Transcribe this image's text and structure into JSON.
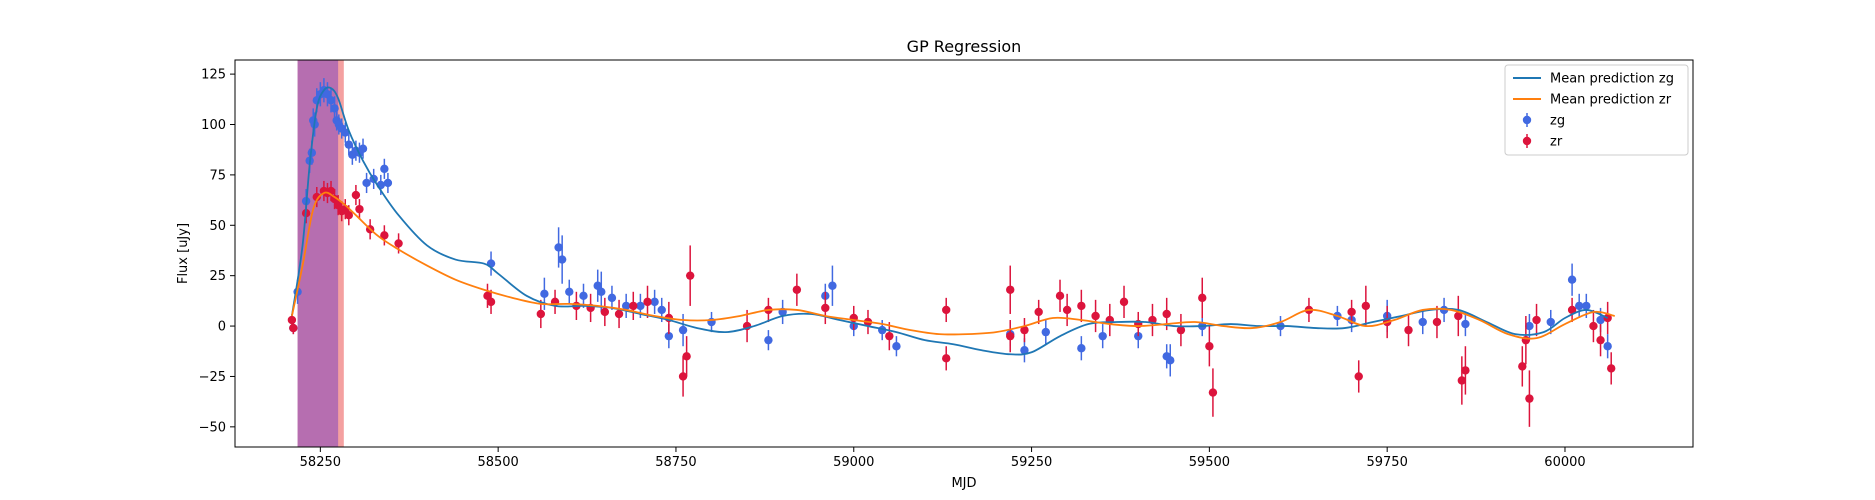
{
  "chart_data": {
    "type": "scatter",
    "title": "GP Regression",
    "xlabel": "MJD",
    "ylabel": "Flux [uJy]",
    "xlim": [
      58130,
      60180
    ],
    "ylim": [
      -60,
      132
    ],
    "xticks": [
      58250,
      58500,
      58750,
      59000,
      59250,
      59500,
      59750,
      60000
    ],
    "yticks": [
      -50,
      -25,
      0,
      25,
      50,
      75,
      100,
      125
    ],
    "grid": false,
    "legend_position": "top-right",
    "legend": [
      "Mean prediction zg",
      "Mean prediction zr",
      "zg",
      "zr"
    ],
    "shaded_regions": [
      {
        "x0": 58218,
        "x1": 58283,
        "color": "#f08080",
        "opacity": 0.75
      },
      {
        "x0": 58218,
        "x1": 58275,
        "color": "#9b59b6",
        "opacity": 0.7
      }
    ],
    "series": [
      {
        "name": "Mean prediction zg",
        "kind": "line",
        "color": "#1f77b4",
        "x": [
          58210,
          58225,
          58235,
          58245,
          58255,
          58265,
          58275,
          58290,
          58310,
          58330,
          58360,
          58400,
          58440,
          58480,
          58500,
          58540,
          58580,
          58620,
          58660,
          58700,
          58740,
          58780,
          58820,
          58860,
          58900,
          58940,
          58980,
          59020,
          59060,
          59100,
          59140,
          59180,
          59220,
          59250,
          59290,
          59330,
          59370,
          59410,
          59450,
          59490,
          59530,
          59570,
          59610,
          59650,
          59690,
          59730,
          59770,
          59810,
          59850,
          59890,
          59930,
          59970,
          60000,
          60030,
          60060
        ],
        "y": [
          5,
          40,
          80,
          108,
          117,
          118,
          113,
          97,
          82,
          70,
          55,
          40,
          33,
          31,
          26,
          15,
          10,
          10,
          9,
          6,
          3,
          -1,
          -3,
          0,
          5,
          6,
          3,
          0,
          -3,
          -7,
          -9,
          -12,
          -14,
          -13,
          -5,
          1,
          2,
          2,
          0,
          0,
          1,
          0,
          0,
          -1,
          -1,
          2,
          5,
          8,
          8,
          2,
          -4,
          -3,
          4,
          8,
          4
        ]
      },
      {
        "name": "Mean prediction zr",
        "kind": "line",
        "color": "#ff7f0e",
        "x": [
          58210,
          58225,
          58240,
          58255,
          58270,
          58285,
          58300,
          58330,
          58360,
          58400,
          58440,
          58480,
          58520,
          58560,
          58600,
          58640,
          58680,
          58720,
          58760,
          58800,
          58840,
          58880,
          58920,
          58960,
          59000,
          59040,
          59080,
          59120,
          59160,
          59200,
          59240,
          59280,
          59320,
          59360,
          59400,
          59440,
          59480,
          59520,
          59560,
          59600,
          59640,
          59680,
          59720,
          59760,
          59800,
          59840,
          59880,
          59920,
          59960,
          60000,
          60040,
          60070
        ],
        "y": [
          5,
          30,
          58,
          66,
          64,
          60,
          55,
          45,
          38,
          30,
          23,
          18,
          14,
          11,
          11,
          10,
          8,
          5,
          3,
          3,
          5,
          8,
          8,
          5,
          3,
          1,
          -2,
          -4,
          -4,
          -3,
          0,
          4,
          3,
          1,
          0,
          1,
          2,
          0,
          -1,
          2,
          8,
          5,
          0,
          3,
          8,
          8,
          3,
          -4,
          -6,
          1,
          7,
          5
        ]
      },
      {
        "name": "zg",
        "kind": "errorbar",
        "color": "#4169e1",
        "x": [
          58212,
          58218,
          58230,
          58235,
          58238,
          58240,
          58242,
          58245,
          58250,
          58255,
          58260,
          58265,
          58270,
          58273,
          58276,
          58280,
          58285,
          58290,
          58295,
          58300,
          58305,
          58310,
          58315,
          58325,
          58335,
          58340,
          58345,
          58490,
          58565,
          58585,
          58590,
          58600,
          58620,
          58640,
          58645,
          58660,
          58680,
          58700,
          58720,
          58730,
          58740,
          58760,
          58800,
          58880,
          58900,
          58960,
          58970,
          59000,
          59040,
          59060,
          59220,
          59240,
          59270,
          59320,
          59350,
          59400,
          59440,
          59445,
          59490,
          59600,
          59680,
          59700,
          59750,
          59800,
          59830,
          59860,
          59950,
          59980,
          60010,
          60020,
          60030,
          60050,
          60060
        ],
        "y": [
          -1,
          17,
          62,
          82,
          86,
          102,
          100,
          112,
          115,
          117,
          115,
          112,
          108,
          102,
          100,
          98,
          96,
          90,
          85,
          87,
          86,
          88,
          71,
          73,
          70,
          78,
          71,
          31,
          16,
          39,
          33,
          17,
          15,
          20,
          17,
          14,
          10,
          10,
          12,
          8,
          -5,
          -2,
          2,
          -7,
          7,
          15,
          20,
          0,
          -2,
          -10,
          -4,
          -12,
          -3,
          -11,
          -5,
          -5,
          -15,
          -17,
          0,
          0,
          5,
          3,
          5,
          2,
          8,
          1,
          0,
          2,
          23,
          10,
          10,
          3,
          -10
        ],
        "err": [
          3,
          6,
          6,
          6,
          6,
          6,
          6,
          6,
          6,
          6,
          6,
          6,
          6,
          5,
          5,
          5,
          5,
          5,
          5,
          5,
          5,
          5,
          5,
          5,
          5,
          5,
          5,
          6,
          8,
          10,
          12,
          6,
          6,
          8,
          10,
          6,
          6,
          6,
          6,
          6,
          6,
          8,
          5,
          5,
          6,
          6,
          10,
          5,
          5,
          5,
          6,
          6,
          6,
          6,
          6,
          6,
          6,
          8,
          5,
          5,
          5,
          6,
          8,
          6,
          6,
          6,
          6,
          6,
          8,
          6,
          6,
          6,
          6
        ]
      },
      {
        "name": "zr",
        "kind": "errorbar",
        "color": "#dc143c",
        "x": [
          58210,
          58212,
          58230,
          58245,
          58255,
          58260,
          58265,
          58270,
          58275,
          58280,
          58285,
          58290,
          58300,
          58305,
          58320,
          58340,
          58360,
          58485,
          58490,
          58560,
          58580,
          58610,
          58630,
          58650,
          58670,
          58690,
          58710,
          58740,
          58760,
          58765,
          58770,
          58850,
          58880,
          58920,
          58960,
          59000,
          59020,
          59050,
          59130,
          59130,
          59220,
          59220,
          59240,
          59260,
          59290,
          59300,
          59320,
          59340,
          59360,
          59380,
          59400,
          59420,
          59440,
          59460,
          59490,
          59500,
          59505,
          59640,
          59700,
          59710,
          59720,
          59750,
          59780,
          59820,
          59850,
          59855,
          59860,
          59940,
          59945,
          59950,
          59960,
          60010,
          60040,
          60050,
          60060,
          60065
        ],
        "y": [
          3,
          -1,
          56,
          64,
          67,
          66,
          67,
          63,
          60,
          57,
          58,
          55,
          65,
          58,
          48,
          45,
          41,
          15,
          12,
          6,
          12,
          10,
          9,
          7,
          6,
          10,
          12,
          4,
          -25,
          -15,
          25,
          0,
          8,
          18,
          9,
          4,
          2,
          -5,
          8,
          -16,
          18,
          -5,
          -2,
          7,
          15,
          8,
          10,
          5,
          3,
          12,
          1,
          3,
          6,
          -2,
          14,
          -10,
          -33,
          8,
          7,
          -25,
          10,
          2,
          -2,
          2,
          5,
          -27,
          -22,
          -20,
          -7,
          -36,
          3,
          8,
          0,
          -7,
          4,
          -21
        ],
        "err": [
          3,
          3,
          5,
          5,
          5,
          5,
          5,
          5,
          5,
          5,
          5,
          5,
          5,
          5,
          5,
          5,
          5,
          6,
          6,
          7,
          6,
          7,
          7,
          7,
          7,
          7,
          8,
          8,
          10,
          10,
          15,
          8,
          6,
          8,
          8,
          6,
          6,
          7,
          6,
          6,
          12,
          8,
          6,
          6,
          8,
          8,
          8,
          8,
          8,
          8,
          6,
          8,
          8,
          8,
          10,
          10,
          12,
          6,
          6,
          8,
          10,
          8,
          8,
          8,
          10,
          12,
          12,
          10,
          12,
          14,
          8,
          6,
          8,
          8,
          8,
          8
        ]
      }
    ]
  }
}
